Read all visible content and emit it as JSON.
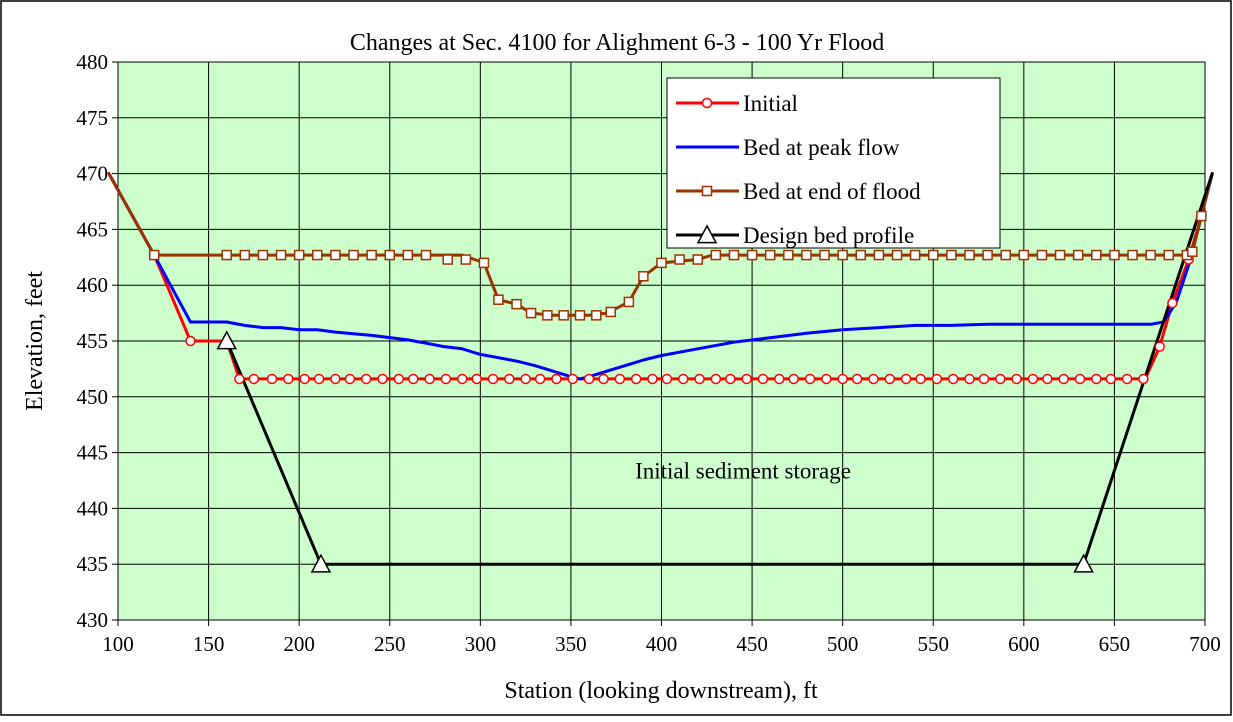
{
  "chart_data": {
    "type": "line",
    "title": "Changes at Sec. 4100 for Alighment 6-3 - 100 Yr Flood",
    "xlabel": "Station (looking downstream), ft",
    "ylabel": "Elevation, feet",
    "xlim": [
      100,
      700
    ],
    "ylim": [
      430,
      480
    ],
    "x_ticks": [
      100,
      150,
      200,
      250,
      300,
      350,
      400,
      450,
      500,
      550,
      600,
      650,
      700
    ],
    "y_ticks": [
      430,
      435,
      440,
      445,
      450,
      455,
      460,
      465,
      470,
      475,
      480
    ],
    "grid": true,
    "plot_background": "#ccffcc",
    "legend_position": "top-right",
    "annotations": [
      {
        "text": "Initial sediment storage",
        "x": 445,
        "y": 442.7
      }
    ],
    "series": [
      {
        "name": "Initial",
        "color": "#ff0000",
        "marker": "circle",
        "points": [
          [
            95,
            470
          ],
          [
            120,
            462.7
          ],
          [
            140,
            455
          ],
          [
            160,
            455
          ],
          [
            167,
            451.6
          ],
          [
            185,
            451.6
          ],
          [
            203,
            451.6
          ],
          [
            220,
            451.6
          ],
          [
            237,
            451.6
          ],
          [
            255,
            451.6
          ],
          [
            272,
            451.6
          ],
          [
            290,
            451.6
          ],
          [
            307,
            451.6
          ],
          [
            325,
            451.6
          ],
          [
            342,
            451.6
          ],
          [
            360,
            451.6
          ],
          [
            377,
            451.6
          ],
          [
            395,
            451.6
          ],
          [
            412,
            451.6
          ],
          [
            430,
            451.6
          ],
          [
            447,
            451.6
          ],
          [
            465,
            451.6
          ],
          [
            482,
            451.6
          ],
          [
            500,
            451.6
          ],
          [
            517,
            451.6
          ],
          [
            535,
            451.6
          ],
          [
            552,
            451.6
          ],
          [
            570,
            451.6
          ],
          [
            587,
            451.6
          ],
          [
            605,
            451.6
          ],
          [
            622,
            451.6
          ],
          [
            640,
            451.6
          ],
          [
            657,
            451.6
          ],
          [
            667,
            451.6
          ],
          [
            675,
            454.5
          ],
          [
            682,
            458.4
          ],
          [
            691,
            462.3
          ],
          [
            698,
            466.2
          ],
          [
            704,
            470
          ]
        ],
        "marker_points": [
          [
            140,
            455
          ],
          [
            167,
            451.6
          ],
          [
            175,
            451.6
          ],
          [
            185,
            451.6
          ],
          [
            194,
            451.6
          ],
          [
            203,
            451.6
          ],
          [
            211,
            451.6
          ],
          [
            220,
            451.6
          ],
          [
            228,
            451.6
          ],
          [
            237,
            451.6
          ],
          [
            246,
            451.6
          ],
          [
            255,
            451.6
          ],
          [
            263,
            451.6
          ],
          [
            272,
            451.6
          ],
          [
            281,
            451.6
          ],
          [
            290,
            451.6
          ],
          [
            298,
            451.6
          ],
          [
            307,
            451.6
          ],
          [
            316,
            451.6
          ],
          [
            325,
            451.6
          ],
          [
            333,
            451.6
          ],
          [
            342,
            451.6
          ],
          [
            351,
            451.6
          ],
          [
            360,
            451.6
          ],
          [
            368,
            451.6
          ],
          [
            377,
            451.6
          ],
          [
            386,
            451.6
          ],
          [
            395,
            451.6
          ],
          [
            403,
            451.6
          ],
          [
            412,
            451.6
          ],
          [
            421,
            451.6
          ],
          [
            430,
            451.6
          ],
          [
            438,
            451.6
          ],
          [
            447,
            451.6
          ],
          [
            456,
            451.6
          ],
          [
            465,
            451.6
          ],
          [
            473,
            451.6
          ],
          [
            482,
            451.6
          ],
          [
            491,
            451.6
          ],
          [
            500,
            451.6
          ],
          [
            508,
            451.6
          ],
          [
            517,
            451.6
          ],
          [
            526,
            451.6
          ],
          [
            535,
            451.6
          ],
          [
            543,
            451.6
          ],
          [
            552,
            451.6
          ],
          [
            561,
            451.6
          ],
          [
            570,
            451.6
          ],
          [
            578,
            451.6
          ],
          [
            587,
            451.6
          ],
          [
            596,
            451.6
          ],
          [
            605,
            451.6
          ],
          [
            613,
            451.6
          ],
          [
            622,
            451.6
          ],
          [
            631,
            451.6
          ],
          [
            640,
            451.6
          ],
          [
            648,
            451.6
          ],
          [
            657,
            451.6
          ],
          [
            666,
            451.6
          ],
          [
            675,
            454.5
          ],
          [
            682,
            458.4
          ],
          [
            691,
            462.3
          ],
          [
            698,
            466.2
          ]
        ]
      },
      {
        "name": "Bed at peak flow",
        "color": "#0000ff",
        "marker": "none",
        "points": [
          [
            95,
            470
          ],
          [
            120,
            462.7
          ],
          [
            140,
            456.7
          ],
          [
            160,
            456.7
          ],
          [
            170,
            456.4
          ],
          [
            180,
            456.2
          ],
          [
            190,
            456.2
          ],
          [
            200,
            456
          ],
          [
            210,
            456
          ],
          [
            220,
            455.8
          ],
          [
            240,
            455.5
          ],
          [
            260,
            455.1
          ],
          [
            270,
            454.8
          ],
          [
            280,
            454.5
          ],
          [
            290,
            454.3
          ],
          [
            300,
            453.8
          ],
          [
            310,
            453.5
          ],
          [
            320,
            453.2
          ],
          [
            330,
            452.8
          ],
          [
            340,
            452.3
          ],
          [
            350,
            451.8
          ],
          [
            355,
            451.6
          ],
          [
            360,
            451.8
          ],
          [
            370,
            452.3
          ],
          [
            380,
            452.8
          ],
          [
            390,
            453.3
          ],
          [
            400,
            453.7
          ],
          [
            420,
            454.3
          ],
          [
            440,
            454.9
          ],
          [
            460,
            455.3
          ],
          [
            480,
            455.7
          ],
          [
            500,
            456
          ],
          [
            520,
            456.2
          ],
          [
            540,
            456.4
          ],
          [
            560,
            456.4
          ],
          [
            580,
            456.5
          ],
          [
            600,
            456.5
          ],
          [
            620,
            456.5
          ],
          [
            640,
            456.5
          ],
          [
            660,
            456.5
          ],
          [
            670,
            456.5
          ],
          [
            677,
            456.7
          ],
          [
            684,
            458.4
          ],
          [
            692,
            462.3
          ],
          [
            698,
            466.2
          ],
          [
            704,
            470
          ]
        ]
      },
      {
        "name": "Bed at end of flood",
        "color": "#993300",
        "marker": "square",
        "points": [
          [
            95,
            470
          ],
          [
            120,
            462.7
          ],
          [
            160,
            462.7
          ],
          [
            290,
            462.7
          ],
          [
            302,
            462
          ],
          [
            310,
            458.7
          ],
          [
            320,
            458.3
          ],
          [
            328,
            457.5
          ],
          [
            340,
            457.3
          ],
          [
            360,
            457.3
          ],
          [
            370,
            457.5
          ],
          [
            382,
            458.5
          ],
          [
            390,
            460.8
          ],
          [
            400,
            462
          ],
          [
            420,
            462.3
          ],
          [
            428,
            462.7
          ],
          [
            690,
            462.7
          ],
          [
            693,
            463
          ],
          [
            698,
            466.2
          ],
          [
            704,
            470
          ]
        ],
        "marker_points": [
          [
            120,
            462.7
          ],
          [
            160,
            462.7
          ],
          [
            170,
            462.7
          ],
          [
            180,
            462.7
          ],
          [
            190,
            462.7
          ],
          [
            200,
            462.7
          ],
          [
            210,
            462.7
          ],
          [
            220,
            462.7
          ],
          [
            230,
            462.7
          ],
          [
            240,
            462.7
          ],
          [
            250,
            462.7
          ],
          [
            260,
            462.7
          ],
          [
            270,
            462.7
          ],
          [
            282,
            462.3
          ],
          [
            292,
            462.3
          ],
          [
            302,
            462
          ],
          [
            310,
            458.7
          ],
          [
            320,
            458.3
          ],
          [
            328,
            457.5
          ],
          [
            337,
            457.3
          ],
          [
            346,
            457.3
          ],
          [
            355,
            457.3
          ],
          [
            364,
            457.3
          ],
          [
            372,
            457.6
          ],
          [
            382,
            458.5
          ],
          [
            390,
            460.8
          ],
          [
            400,
            462
          ],
          [
            410,
            462.3
          ],
          [
            420,
            462.3
          ],
          [
            430,
            462.7
          ],
          [
            440,
            462.7
          ],
          [
            450,
            462.7
          ],
          [
            460,
            462.7
          ],
          [
            470,
            462.7
          ],
          [
            480,
            462.7
          ],
          [
            490,
            462.7
          ],
          [
            500,
            462.7
          ],
          [
            510,
            462.7
          ],
          [
            520,
            462.7
          ],
          [
            530,
            462.7
          ],
          [
            540,
            462.7
          ],
          [
            550,
            462.7
          ],
          [
            560,
            462.7
          ],
          [
            570,
            462.7
          ],
          [
            580,
            462.7
          ],
          [
            590,
            462.7
          ],
          [
            600,
            462.7
          ],
          [
            610,
            462.7
          ],
          [
            620,
            462.7
          ],
          [
            630,
            462.7
          ],
          [
            640,
            462.7
          ],
          [
            650,
            462.7
          ],
          [
            660,
            462.7
          ],
          [
            670,
            462.7
          ],
          [
            680,
            462.7
          ],
          [
            690,
            462.7
          ],
          [
            693,
            463
          ],
          [
            698,
            466.2
          ]
        ]
      },
      {
        "name": "Design bed profile",
        "color": "#000000",
        "marker": "triangle",
        "points": [
          [
            160,
            455
          ],
          [
            212,
            435
          ],
          [
            633,
            435
          ],
          [
            704,
            470
          ]
        ],
        "marker_points": [
          [
            160,
            455
          ],
          [
            212,
            435
          ],
          [
            633,
            435
          ]
        ]
      }
    ]
  }
}
